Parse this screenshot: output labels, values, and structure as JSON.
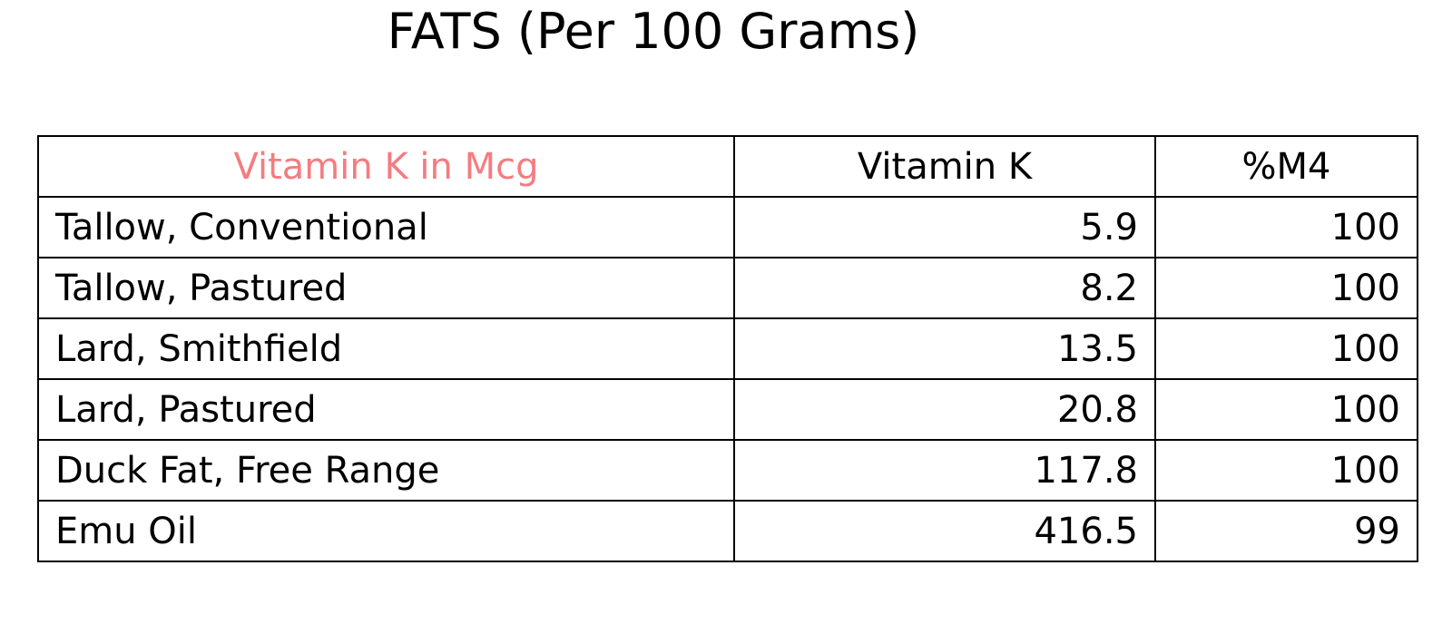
{
  "chart_data": {
    "type": "table",
    "title": "FATS (Per 100 Grams)",
    "header_color": "#f47c80",
    "columns": [
      "Vitamin K in Mcg",
      "Vitamin K",
      "%M4"
    ],
    "rows": [
      {
        "label": "Tallow, Conventional",
        "vitamin_k": "5.9",
        "m4": "100"
      },
      {
        "label": "Tallow, Pastured",
        "vitamin_k": "8.2",
        "m4": "100"
      },
      {
        "label": "Lard, Smithfield",
        "vitamin_k": "13.5",
        "m4": "100"
      },
      {
        "label": "Lard, Pastured",
        "vitamin_k": "20.8",
        "m4": "100"
      },
      {
        "label": "Duck Fat, Free Range",
        "vitamin_k": "117.8",
        "m4": "100"
      },
      {
        "label": "Emu Oil",
        "vitamin_k": "416.5",
        "m4": "99"
      }
    ]
  }
}
